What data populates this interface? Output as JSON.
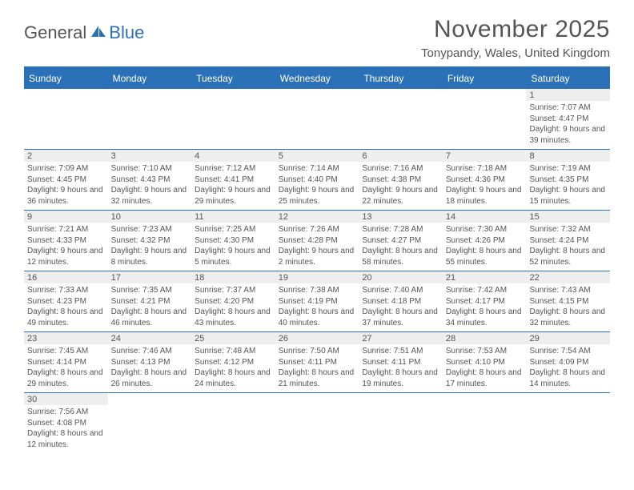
{
  "logo": {
    "part1": "General",
    "part2": "Blue"
  },
  "title": "November 2025",
  "location": "Tonypandy, Wales, United Kingdom",
  "colors": {
    "accent": "#2b71b8",
    "text": "#555555",
    "shade": "#eeeeee",
    "bg": "#ffffff"
  },
  "dayHeaders": [
    "Sunday",
    "Monday",
    "Tuesday",
    "Wednesday",
    "Thursday",
    "Friday",
    "Saturday"
  ],
  "weeks": [
    [
      {
        "n": "",
        "sr": "",
        "ss": "",
        "dl": ""
      },
      {
        "n": "",
        "sr": "",
        "ss": "",
        "dl": ""
      },
      {
        "n": "",
        "sr": "",
        "ss": "",
        "dl": ""
      },
      {
        "n": "",
        "sr": "",
        "ss": "",
        "dl": ""
      },
      {
        "n": "",
        "sr": "",
        "ss": "",
        "dl": ""
      },
      {
        "n": "",
        "sr": "",
        "ss": "",
        "dl": ""
      },
      {
        "n": "1",
        "sr": "Sunrise: 7:07 AM",
        "ss": "Sunset: 4:47 PM",
        "dl": "Daylight: 9 hours and 39 minutes."
      }
    ],
    [
      {
        "n": "2",
        "sr": "Sunrise: 7:09 AM",
        "ss": "Sunset: 4:45 PM",
        "dl": "Daylight: 9 hours and 36 minutes."
      },
      {
        "n": "3",
        "sr": "Sunrise: 7:10 AM",
        "ss": "Sunset: 4:43 PM",
        "dl": "Daylight: 9 hours and 32 minutes."
      },
      {
        "n": "4",
        "sr": "Sunrise: 7:12 AM",
        "ss": "Sunset: 4:41 PM",
        "dl": "Daylight: 9 hours and 29 minutes."
      },
      {
        "n": "5",
        "sr": "Sunrise: 7:14 AM",
        "ss": "Sunset: 4:40 PM",
        "dl": "Daylight: 9 hours and 25 minutes."
      },
      {
        "n": "6",
        "sr": "Sunrise: 7:16 AM",
        "ss": "Sunset: 4:38 PM",
        "dl": "Daylight: 9 hours and 22 minutes."
      },
      {
        "n": "7",
        "sr": "Sunrise: 7:18 AM",
        "ss": "Sunset: 4:36 PM",
        "dl": "Daylight: 9 hours and 18 minutes."
      },
      {
        "n": "8",
        "sr": "Sunrise: 7:19 AM",
        "ss": "Sunset: 4:35 PM",
        "dl": "Daylight: 9 hours and 15 minutes."
      }
    ],
    [
      {
        "n": "9",
        "sr": "Sunrise: 7:21 AM",
        "ss": "Sunset: 4:33 PM",
        "dl": "Daylight: 9 hours and 12 minutes."
      },
      {
        "n": "10",
        "sr": "Sunrise: 7:23 AM",
        "ss": "Sunset: 4:32 PM",
        "dl": "Daylight: 9 hours and 8 minutes."
      },
      {
        "n": "11",
        "sr": "Sunrise: 7:25 AM",
        "ss": "Sunset: 4:30 PM",
        "dl": "Daylight: 9 hours and 5 minutes."
      },
      {
        "n": "12",
        "sr": "Sunrise: 7:26 AM",
        "ss": "Sunset: 4:28 PM",
        "dl": "Daylight: 9 hours and 2 minutes."
      },
      {
        "n": "13",
        "sr": "Sunrise: 7:28 AM",
        "ss": "Sunset: 4:27 PM",
        "dl": "Daylight: 8 hours and 58 minutes."
      },
      {
        "n": "14",
        "sr": "Sunrise: 7:30 AM",
        "ss": "Sunset: 4:26 PM",
        "dl": "Daylight: 8 hours and 55 minutes."
      },
      {
        "n": "15",
        "sr": "Sunrise: 7:32 AM",
        "ss": "Sunset: 4:24 PM",
        "dl": "Daylight: 8 hours and 52 minutes."
      }
    ],
    [
      {
        "n": "16",
        "sr": "Sunrise: 7:33 AM",
        "ss": "Sunset: 4:23 PM",
        "dl": "Daylight: 8 hours and 49 minutes."
      },
      {
        "n": "17",
        "sr": "Sunrise: 7:35 AM",
        "ss": "Sunset: 4:21 PM",
        "dl": "Daylight: 8 hours and 46 minutes."
      },
      {
        "n": "18",
        "sr": "Sunrise: 7:37 AM",
        "ss": "Sunset: 4:20 PM",
        "dl": "Daylight: 8 hours and 43 minutes."
      },
      {
        "n": "19",
        "sr": "Sunrise: 7:38 AM",
        "ss": "Sunset: 4:19 PM",
        "dl": "Daylight: 8 hours and 40 minutes."
      },
      {
        "n": "20",
        "sr": "Sunrise: 7:40 AM",
        "ss": "Sunset: 4:18 PM",
        "dl": "Daylight: 8 hours and 37 minutes."
      },
      {
        "n": "21",
        "sr": "Sunrise: 7:42 AM",
        "ss": "Sunset: 4:17 PM",
        "dl": "Daylight: 8 hours and 34 minutes."
      },
      {
        "n": "22",
        "sr": "Sunrise: 7:43 AM",
        "ss": "Sunset: 4:15 PM",
        "dl": "Daylight: 8 hours and 32 minutes."
      }
    ],
    [
      {
        "n": "23",
        "sr": "Sunrise: 7:45 AM",
        "ss": "Sunset: 4:14 PM",
        "dl": "Daylight: 8 hours and 29 minutes."
      },
      {
        "n": "24",
        "sr": "Sunrise: 7:46 AM",
        "ss": "Sunset: 4:13 PM",
        "dl": "Daylight: 8 hours and 26 minutes."
      },
      {
        "n": "25",
        "sr": "Sunrise: 7:48 AM",
        "ss": "Sunset: 4:12 PM",
        "dl": "Daylight: 8 hours and 24 minutes."
      },
      {
        "n": "26",
        "sr": "Sunrise: 7:50 AM",
        "ss": "Sunset: 4:11 PM",
        "dl": "Daylight: 8 hours and 21 minutes."
      },
      {
        "n": "27",
        "sr": "Sunrise: 7:51 AM",
        "ss": "Sunset: 4:11 PM",
        "dl": "Daylight: 8 hours and 19 minutes."
      },
      {
        "n": "28",
        "sr": "Sunrise: 7:53 AM",
        "ss": "Sunset: 4:10 PM",
        "dl": "Daylight: 8 hours and 17 minutes."
      },
      {
        "n": "29",
        "sr": "Sunrise: 7:54 AM",
        "ss": "Sunset: 4:09 PM",
        "dl": "Daylight: 8 hours and 14 minutes."
      }
    ],
    [
      {
        "n": "30",
        "sr": "Sunrise: 7:56 AM",
        "ss": "Sunset: 4:08 PM",
        "dl": "Daylight: 8 hours and 12 minutes."
      },
      {
        "n": "",
        "sr": "",
        "ss": "",
        "dl": ""
      },
      {
        "n": "",
        "sr": "",
        "ss": "",
        "dl": ""
      },
      {
        "n": "",
        "sr": "",
        "ss": "",
        "dl": ""
      },
      {
        "n": "",
        "sr": "",
        "ss": "",
        "dl": ""
      },
      {
        "n": "",
        "sr": "",
        "ss": "",
        "dl": ""
      },
      {
        "n": "",
        "sr": "",
        "ss": "",
        "dl": ""
      }
    ]
  ]
}
